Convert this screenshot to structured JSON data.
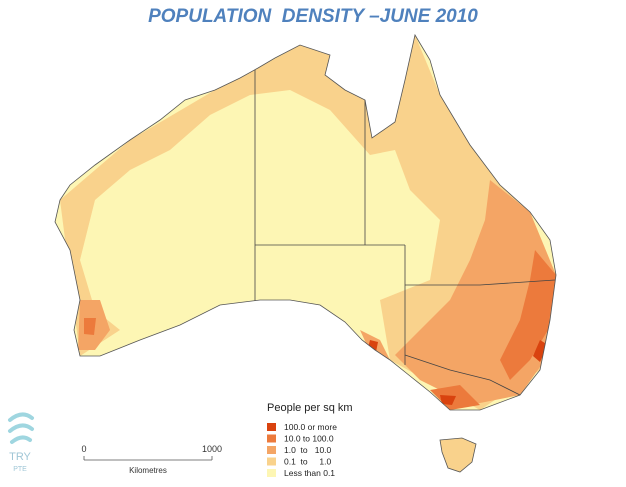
{
  "title": "POPULATION  DENSITY –JUNE 2010",
  "legend": {
    "title": "People per sq km",
    "items": [
      {
        "label": "100.0 or more",
        "color": "#d9430f"
      },
      {
        "label": "10.0 to 100.0",
        "color": "#ec7a3c"
      },
      {
        "label": "1.0  to   10.0",
        "color": "#f4a565"
      },
      {
        "label": "0.1  to     1.0",
        "color": "#f9d28c"
      },
      {
        "label": "Less than 0.1",
        "color": "#fdf6b4"
      }
    ]
  },
  "scale_bar": {
    "start": "0",
    "end": "1000",
    "unit": "Kilometres"
  },
  "logo": {
    "name": "TRY",
    "sub": "PTE"
  }
}
